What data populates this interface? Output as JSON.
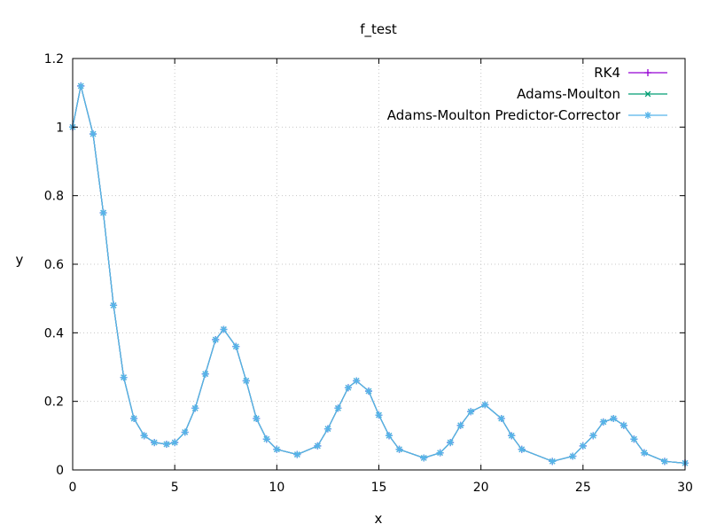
{
  "chart_data": {
    "type": "line",
    "title": "f_test",
    "xlabel": "x",
    "ylabel": "y",
    "xlim": [
      0,
      30
    ],
    "ylim": [
      0,
      1.2
    ],
    "xticks": [
      0,
      5,
      10,
      15,
      20,
      25,
      30
    ],
    "xtick_labels": [
      "0",
      "5",
      "10",
      "15",
      "20",
      "25",
      "30"
    ],
    "yticks": [
      0,
      0.2,
      0.4,
      0.6,
      0.8,
      1,
      1.2
    ],
    "ytick_labels": [
      "0",
      "0.2",
      "0.4",
      "0.6",
      "0.8",
      "1",
      "1.2"
    ],
    "grid": true,
    "legend_position": "top-right",
    "series": [
      {
        "name": "RK4",
        "color": "#9400d3",
        "marker": "plus",
        "x": [
          0,
          0.4,
          1,
          1.5,
          2,
          2.5,
          3,
          3.5,
          4,
          4.6,
          5,
          5.5,
          6,
          6.5,
          7,
          7.4,
          8,
          8.5,
          9,
          9.5,
          10,
          11,
          12,
          12.5,
          13,
          13.5,
          13.9,
          14.5,
          15,
          15.5,
          16,
          17.2,
          18,
          18.5,
          19,
          19.5,
          20.2,
          21,
          21.5,
          22,
          23.5,
          24.5,
          25,
          25.5,
          26,
          26.5,
          27,
          27.5,
          28,
          29,
          30
        ],
        "y": [
          1.0,
          1.12,
          0.98,
          0.75,
          0.48,
          0.27,
          0.15,
          0.1,
          0.08,
          0.075,
          0.08,
          0.11,
          0.18,
          0.28,
          0.38,
          0.41,
          0.36,
          0.26,
          0.15,
          0.09,
          0.06,
          0.045,
          0.07,
          0.12,
          0.18,
          0.24,
          0.26,
          0.23,
          0.16,
          0.1,
          0.06,
          0.035,
          0.05,
          0.08,
          0.13,
          0.17,
          0.19,
          0.15,
          0.1,
          0.06,
          0.025,
          0.04,
          0.07,
          0.1,
          0.14,
          0.15,
          0.13,
          0.09,
          0.05,
          0.025,
          0.02
        ]
      },
      {
        "name": "Adams-Moulton",
        "color": "#009e73",
        "marker": "cross",
        "x": [
          0,
          0.4,
          1,
          1.5,
          2,
          2.5,
          3,
          3.5,
          4,
          4.6,
          5,
          5.5,
          6,
          6.5,
          7,
          7.4,
          8,
          8.5,
          9,
          9.5,
          10,
          11,
          12,
          12.5,
          13,
          13.5,
          13.9,
          14.5,
          15,
          15.5,
          16,
          17.2,
          18,
          18.5,
          19,
          19.5,
          20.2,
          21,
          21.5,
          22,
          23.5,
          24.5,
          25,
          25.5,
          26,
          26.5,
          27,
          27.5,
          28,
          29,
          30
        ],
        "y": [
          1.0,
          1.12,
          0.98,
          0.75,
          0.48,
          0.27,
          0.15,
          0.1,
          0.08,
          0.075,
          0.08,
          0.11,
          0.18,
          0.28,
          0.38,
          0.41,
          0.36,
          0.26,
          0.15,
          0.09,
          0.06,
          0.045,
          0.07,
          0.12,
          0.18,
          0.24,
          0.26,
          0.23,
          0.16,
          0.1,
          0.06,
          0.035,
          0.05,
          0.08,
          0.13,
          0.17,
          0.19,
          0.15,
          0.1,
          0.06,
          0.025,
          0.04,
          0.07,
          0.1,
          0.14,
          0.15,
          0.13,
          0.09,
          0.05,
          0.025,
          0.02
        ]
      },
      {
        "name": "Adams-Moulton Predictor-Corrector",
        "color": "#56b4e9",
        "marker": "star",
        "x": [
          0,
          0.4,
          1,
          1.5,
          2,
          2.5,
          3,
          3.5,
          4,
          4.6,
          5,
          5.5,
          6,
          6.5,
          7,
          7.4,
          8,
          8.5,
          9,
          9.5,
          10,
          11,
          12,
          12.5,
          13,
          13.5,
          13.9,
          14.5,
          15,
          15.5,
          16,
          17.2,
          18,
          18.5,
          19,
          19.5,
          20.2,
          21,
          21.5,
          22,
          23.5,
          24.5,
          25,
          25.5,
          26,
          26.5,
          27,
          27.5,
          28,
          29,
          30
        ],
        "y": [
          1.0,
          1.12,
          0.98,
          0.75,
          0.48,
          0.27,
          0.15,
          0.1,
          0.08,
          0.075,
          0.08,
          0.11,
          0.18,
          0.28,
          0.38,
          0.41,
          0.36,
          0.26,
          0.15,
          0.09,
          0.06,
          0.045,
          0.07,
          0.12,
          0.18,
          0.24,
          0.26,
          0.23,
          0.16,
          0.1,
          0.06,
          0.035,
          0.05,
          0.08,
          0.13,
          0.17,
          0.19,
          0.15,
          0.1,
          0.06,
          0.025,
          0.04,
          0.07,
          0.1,
          0.14,
          0.15,
          0.13,
          0.09,
          0.05,
          0.025,
          0.02
        ]
      }
    ]
  }
}
